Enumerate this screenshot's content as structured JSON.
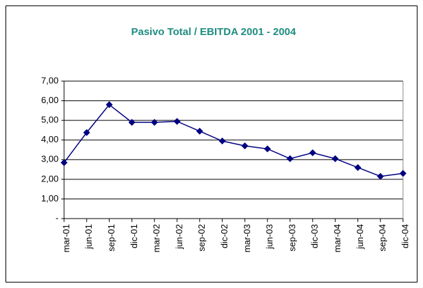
{
  "chart_data": {
    "type": "line",
    "title": "Pasivo Total / EBITDA 2001 - 2004",
    "categories": [
      "mar-01",
      "jun-01",
      "sep-01",
      "dic-01",
      "mar-02",
      "jun-02",
      "sep-02",
      "dic-02",
      "mar-03",
      "jun-03",
      "sep-03",
      "dic-03",
      "mar-04",
      "jun-04",
      "sep-04",
      "dic-04"
    ],
    "values": [
      2.85,
      4.38,
      5.8,
      4.9,
      4.9,
      4.95,
      4.45,
      3.95,
      3.7,
      3.55,
      3.05,
      3.35,
      3.05,
      2.6,
      2.15,
      2.3
    ],
    "color": "#000080",
    "ylim": [
      0,
      7
    ],
    "yticks": [
      {
        "value": 0,
        "label": "-"
      },
      {
        "value": 1,
        "label": "1,00"
      },
      {
        "value": 2,
        "label": "2,00"
      },
      {
        "value": 3,
        "label": "3,00"
      },
      {
        "value": 4,
        "label": "4,00"
      },
      {
        "value": 5,
        "label": "5,00"
      },
      {
        "value": 6,
        "label": "6,00"
      },
      {
        "value": 7,
        "label": "7,00"
      }
    ],
    "grid": true
  }
}
